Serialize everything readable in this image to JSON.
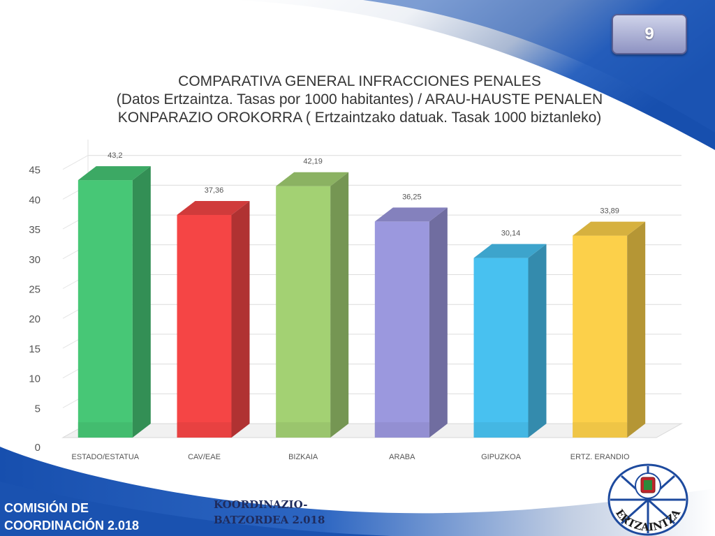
{
  "slide": {
    "page_number": "9",
    "footer_left": [
      "COMISIÓN DE",
      "COORDINACIÓN 2.018"
    ],
    "footer_mid": [
      "KOORDINAZIO-",
      "BATZORDEA 2.018"
    ],
    "logo_text": "ERTZAINTZA"
  },
  "colors": {
    "background_blue": "#1d56b4",
    "badge": "#8e93c2",
    "bars": [
      "#47c776",
      "#f54545",
      "#a3d173",
      "#9b98de",
      "#48c1f0",
      "#fcd04a"
    ]
  },
  "chart_data": {
    "type": "bar",
    "style": "3d-column",
    "title": [
      "COMPARATIVA GENERAL INFRACCIONES PENALES",
      "(Datos Ertzaintza. Tasas por 1000 habitantes) / ARAU-HAUSTE PENALEN",
      "KONPARAZIO OROKORRA ( Ertzaintzako datuak. Tasak 1000 biztanleko)"
    ],
    "categories": [
      "ESTADO/ESTATUA",
      "CAV/EAE",
      "BIZKAIA",
      "ARABA",
      "GIPUZKOA",
      "ERTZ. ERANDIO"
    ],
    "values": [
      43.2,
      37.36,
      42.19,
      36.25,
      30.14,
      33.89
    ],
    "data_labels": [
      "43,2",
      "37,36",
      "42,19",
      "36,25",
      "30,14",
      "33,89"
    ],
    "yticks": [
      "0",
      "5",
      "10",
      "15",
      "20",
      "25",
      "30",
      "35",
      "40",
      "45"
    ],
    "ylim": [
      0,
      50
    ],
    "grid": true,
    "legend": "none"
  }
}
